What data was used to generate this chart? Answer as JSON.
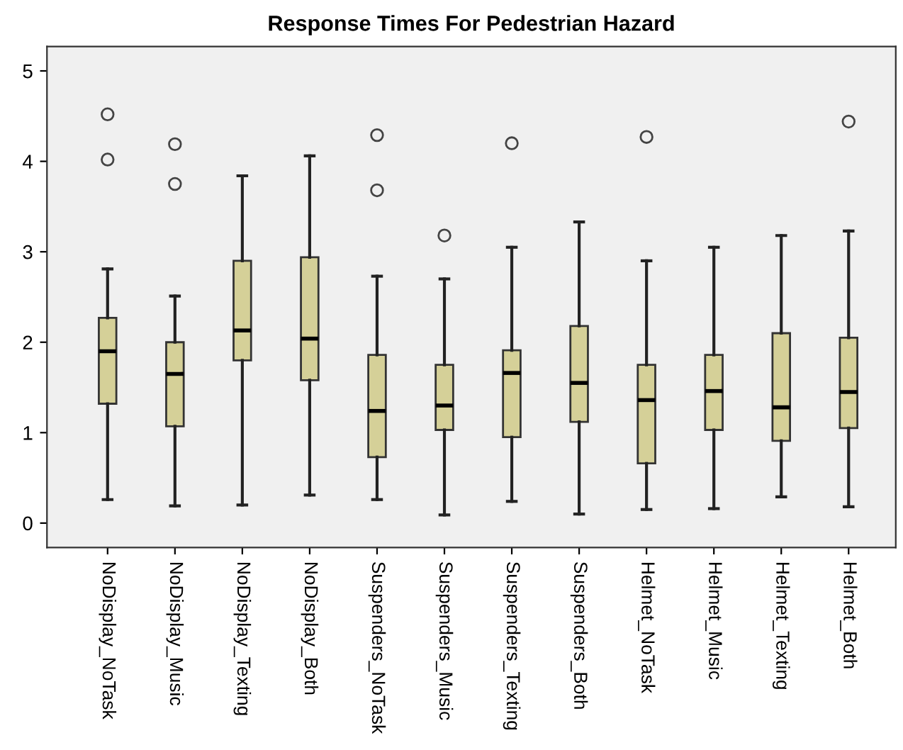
{
  "chart_data": {
    "type": "box",
    "title": "Response Times For Pedestrian Hazard",
    "categories": [
      "NoDisplay_NoTask",
      "NoDisplay_Music",
      "NoDisplay_Texting",
      "NoDisplay_Both",
      "Suspenders_NoTask",
      "Suspenders_Music",
      "Suspenders_Texting",
      "Suspenders_Both",
      "Helmet_NoTask",
      "Helmet_Music",
      "Helmet_Texting",
      "Helmet_Both"
    ],
    "color": "#d5d098",
    "boxes": [
      {
        "low": 0.26,
        "q1": 1.32,
        "median": 1.9,
        "q3": 2.27,
        "high": 2.81,
        "outliers": [
          4.02,
          4.52
        ]
      },
      {
        "low": 0.19,
        "q1": 1.07,
        "median": 1.65,
        "q3": 2.0,
        "high": 2.51,
        "outliers": [
          3.75,
          4.19
        ]
      },
      {
        "low": 0.2,
        "q1": 1.8,
        "median": 2.13,
        "q3": 2.9,
        "high": 3.84
      },
      {
        "low": 0.31,
        "q1": 1.58,
        "median": 2.04,
        "q3": 2.94,
        "high": 4.06
      },
      {
        "low": 0.26,
        "q1": 0.73,
        "median": 1.24,
        "q3": 1.86,
        "high": 2.73,
        "outliers": [
          3.68,
          4.29
        ]
      },
      {
        "low": 0.09,
        "q1": 1.03,
        "median": 1.3,
        "q3": 1.75,
        "high": 2.7,
        "outliers": [
          3.18
        ]
      },
      {
        "low": 0.24,
        "q1": 0.95,
        "median": 1.66,
        "q3": 1.91,
        "high": 3.05,
        "outliers": [
          4.2
        ]
      },
      {
        "low": 0.1,
        "q1": 1.12,
        "median": 1.55,
        "q3": 2.18,
        "high": 3.33
      },
      {
        "low": 0.15,
        "q1": 0.66,
        "median": 1.36,
        "q3": 1.75,
        "high": 2.9,
        "outliers": [
          4.27
        ]
      },
      {
        "low": 0.16,
        "q1": 1.03,
        "median": 1.46,
        "q3": 1.86,
        "high": 3.05
      },
      {
        "low": 0.29,
        "q1": 0.91,
        "median": 1.28,
        "q3": 2.1,
        "high": 3.18
      },
      {
        "low": 0.18,
        "q1": 1.05,
        "median": 1.45,
        "q3": 2.05,
        "high": 3.23,
        "outliers": [
          4.44
        ]
      }
    ],
    "ylim": [
      -0.27,
      5.27
    ],
    "yticks": [
      0,
      1,
      2,
      3,
      4,
      5
    ],
    "grid": false
  }
}
